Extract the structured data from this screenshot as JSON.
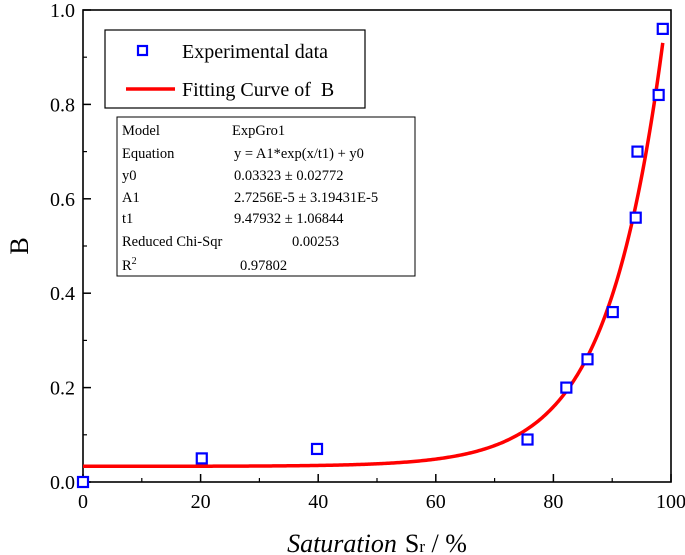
{
  "chart_data": {
    "type": "scatter",
    "title": "",
    "xlabel": {
      "italic": "Saturation",
      "symbol": "S",
      "subscript": "r",
      "suffix": " / %"
    },
    "ylabel": "B",
    "xlim": [
      0,
      100
    ],
    "ylim": [
      0,
      1
    ],
    "xticks": [
      0,
      20,
      40,
      60,
      80,
      100
    ],
    "yticks": [
      0.0,
      0.2,
      0.4,
      0.6,
      0.8,
      1.0
    ],
    "xtick_labels": [
      "0",
      "20",
      "40",
      "60",
      "80",
      "100"
    ],
    "ytick_labels": [
      "0.0",
      "0.2",
      "0.4",
      "0.6",
      "0.8",
      "1.0"
    ],
    "grid": false,
    "legend_position": "top-left",
    "series": [
      {
        "name": "Experimental data",
        "kind": "scatter",
        "marker": "open-square",
        "color": "#0000ff",
        "x": [
          0,
          20.2,
          39.8,
          75.6,
          82.2,
          85.8,
          90.1,
          94.0,
          94.3,
          97.9,
          98.6
        ],
        "y": [
          0.0,
          0.05,
          0.07,
          0.09,
          0.2,
          0.26,
          0.36,
          0.56,
          0.7,
          0.82,
          0.96
        ]
      },
      {
        "name": "Fitting Curve of  B",
        "kind": "line",
        "color": "#ff0000",
        "model": "exp_growth",
        "params": {
          "A1": 2.7256e-05,
          "t1": 9.47932,
          "y0": 0.03323
        },
        "x_range": [
          0,
          98.6
        ]
      }
    ],
    "stats_table": [
      {
        "label": "Model",
        "value": "ExpGro1"
      },
      {
        "label": "Equation",
        "value": "y = A1*exp(x/t1) + y0"
      },
      {
        "label": "y0",
        "value": "0.03323 ± 0.02772"
      },
      {
        "label": "A1",
        "value": "2.7256E-5 ± 3.19431E-5"
      },
      {
        "label": "t1",
        "value": "9.47932 ± 1.06844"
      },
      {
        "label": "Reduced Chi-Sqr",
        "value": "0.00253"
      },
      {
        "label": "R",
        "label_sup": "2",
        "value": "0.97802"
      }
    ]
  }
}
